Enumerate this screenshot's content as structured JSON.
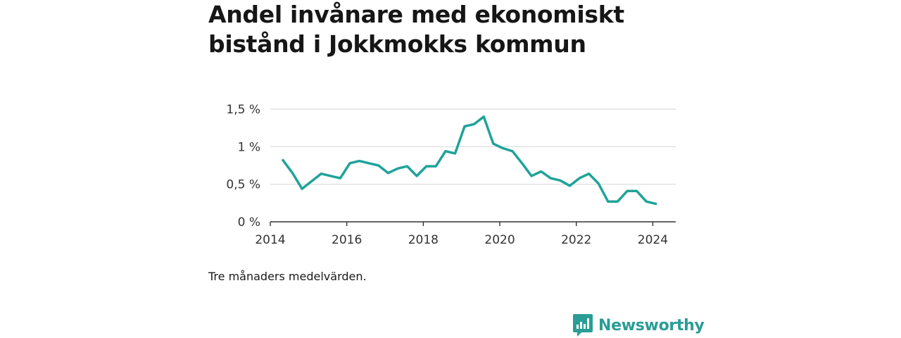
{
  "chart_data": {
    "type": "line",
    "title": "Andel invånare med ekonomiskt bistånd i Jokkmokks kommun",
    "xlabel": "",
    "ylabel": "",
    "xlim": [
      2014.0,
      2024.6
    ],
    "ylim": [
      0,
      1.5
    ],
    "x_ticks": [
      2014,
      2016,
      2018,
      2020,
      2022,
      2024
    ],
    "x_tick_labels": [
      "2014",
      "2016",
      "2018",
      "2020",
      "2022",
      "2024"
    ],
    "y_ticks": [
      0,
      0.5,
      1,
      1.5
    ],
    "y_tick_labels": [
      "0 %",
      "0,5 %",
      "1 %",
      "1,5 %"
    ],
    "grid": "horizontal",
    "series": [
      {
        "color": "#1fa39a",
        "x": [
          2014.33,
          2014.58,
          2014.83,
          2015.08,
          2015.33,
          2015.58,
          2015.83,
          2016.08,
          2016.33,
          2016.58,
          2016.83,
          2017.08,
          2017.33,
          2017.58,
          2017.83,
          2018.08,
          2018.33,
          2018.58,
          2018.83,
          2019.08,
          2019.33,
          2019.58,
          2019.83,
          2020.08,
          2020.33,
          2020.58,
          2020.83,
          2021.08,
          2021.33,
          2021.58,
          2021.83,
          2022.08,
          2022.33,
          2022.58,
          2022.83,
          2023.08,
          2023.33,
          2023.58,
          2023.83,
          2024.08
        ],
        "y": [
          0.82,
          0.65,
          0.44,
          0.54,
          0.64,
          0.61,
          0.58,
          0.78,
          0.81,
          0.78,
          0.75,
          0.65,
          0.71,
          0.74,
          0.61,
          0.74,
          0.74,
          0.94,
          0.91,
          1.27,
          1.3,
          1.4,
          1.04,
          0.98,
          0.94,
          0.78,
          0.61,
          0.67,
          0.58,
          0.55,
          0.48,
          0.58,
          0.64,
          0.51,
          0.27,
          0.27,
          0.41,
          0.41,
          0.27,
          0.24
        ]
      }
    ]
  },
  "footer": {
    "note": "Tre månaders medelvärden.",
    "brand": "Newsworthy",
    "brand_color": "#2a9d96",
    "logo_icon": "bar-chart-speech-bubble-icon"
  }
}
